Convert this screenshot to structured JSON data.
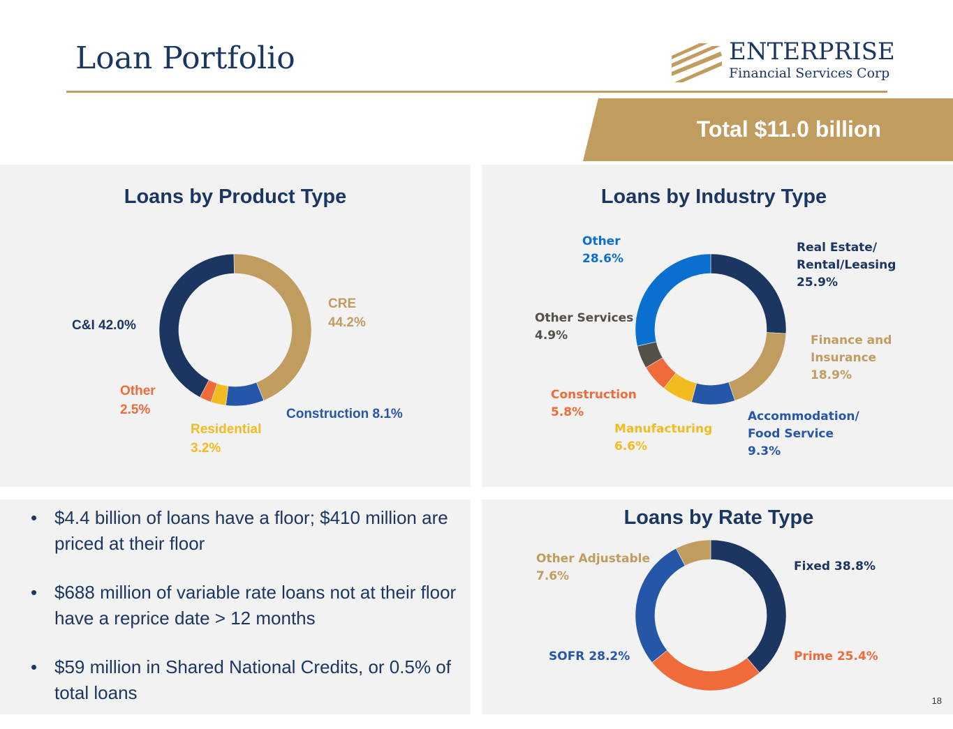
{
  "slide": {
    "title": "Loan Portfolio",
    "logo_name": "ENTERPRISE",
    "logo_sub": "Financial Services Corp",
    "banner": "Total $11.0 billion",
    "page_number": "18"
  },
  "bullets": [
    "$4.4 billion of loans have a floor; $410 million are priced at their floor",
    "$688 million of variable rate loans not at their floor have a reprice date > 12 months",
    "$59 million in Shared National Credits, or 0.5% of total loans"
  ],
  "colors": {
    "navy": "#1b3660",
    "gold": "#c09c5f",
    "blue": "#2656a8",
    "bright_blue": "#0b6fd0",
    "orange": "#ef6b3a",
    "yellow": "#f2bb20",
    "dark_gray": "#555047"
  },
  "chart_data": [
    {
      "type": "pie",
      "title": "Loans by Product Type",
      "categories": [
        "CRE",
        "Construction",
        "Residential",
        "Other",
        "C&I"
      ],
      "values": [
        44.2,
        8.1,
        3.2,
        2.5,
        42.0
      ],
      "colors": [
        "#c09c5f",
        "#2656a8",
        "#f2bb20",
        "#ef6b3a",
        "#1b3660"
      ],
      "labels": [
        {
          "lines": [
            "CRE",
            "44.2%"
          ],
          "color": "#c09c5f"
        },
        {
          "lines": [
            "Construction 8.1%"
          ],
          "color": "#2656a8"
        },
        {
          "lines": [
            "Residential",
            "3.2%"
          ],
          "color": "#f2bb20"
        },
        {
          "lines": [
            "Other",
            "2.5%"
          ],
          "color": "#ef6b3a"
        },
        {
          "lines": [
            "C&I 42.0%"
          ],
          "color": "#1b3660"
        }
      ]
    },
    {
      "type": "pie",
      "title": "Loans by Industry Type",
      "categories": [
        "Real Estate/ Rental/Leasing",
        "Finance and Insurance",
        "Accommodation/ Food Service",
        "Manufacturing",
        "Construction",
        "Other Services",
        "Other"
      ],
      "values": [
        25.9,
        18.9,
        9.3,
        6.6,
        5.8,
        4.9,
        28.6
      ],
      "colors": [
        "#1b3660",
        "#c09c5f",
        "#2656a8",
        "#f2bb20",
        "#ef6b3a",
        "#555047",
        "#0b6fd0"
      ],
      "labels": [
        {
          "lines": [
            "Real Estate/",
            "Rental/Leasing",
            "25.9%"
          ],
          "color": "#1b3660"
        },
        {
          "lines": [
            "Finance and",
            "Insurance",
            "18.9%"
          ],
          "color": "#c09c5f"
        },
        {
          "lines": [
            "Accommodation/",
            "Food Service",
            "9.3%"
          ],
          "color": "#2656a8"
        },
        {
          "lines": [
            "Manufacturing",
            "6.6%"
          ],
          "color": "#f2bb20"
        },
        {
          "lines": [
            "Construction",
            "5.8%"
          ],
          "color": "#ef6b3a"
        },
        {
          "lines": [
            "Other Services",
            "4.9%"
          ],
          "color": "#555047"
        },
        {
          "lines": [
            "Other",
            "28.6%"
          ],
          "color": "#0b6fd0"
        }
      ]
    },
    {
      "type": "pie",
      "title": "Loans by Rate Type",
      "categories": [
        "Fixed",
        "Prime",
        "SOFR",
        "Other Adjustable"
      ],
      "values": [
        38.8,
        25.4,
        28.2,
        7.6
      ],
      "colors": [
        "#1b3660",
        "#ef6b3a",
        "#2656a8",
        "#c09c5f"
      ],
      "labels": [
        {
          "lines": [
            "Fixed 38.8%"
          ],
          "color": "#1b3660"
        },
        {
          "lines": [
            "Prime 25.4%"
          ],
          "color": "#ef6b3a"
        },
        {
          "lines": [
            "SOFR 28.2%"
          ],
          "color": "#2656a8"
        },
        {
          "lines": [
            "Other Adjustable",
            "7.6%"
          ],
          "color": "#c09c5f"
        }
      ]
    }
  ]
}
